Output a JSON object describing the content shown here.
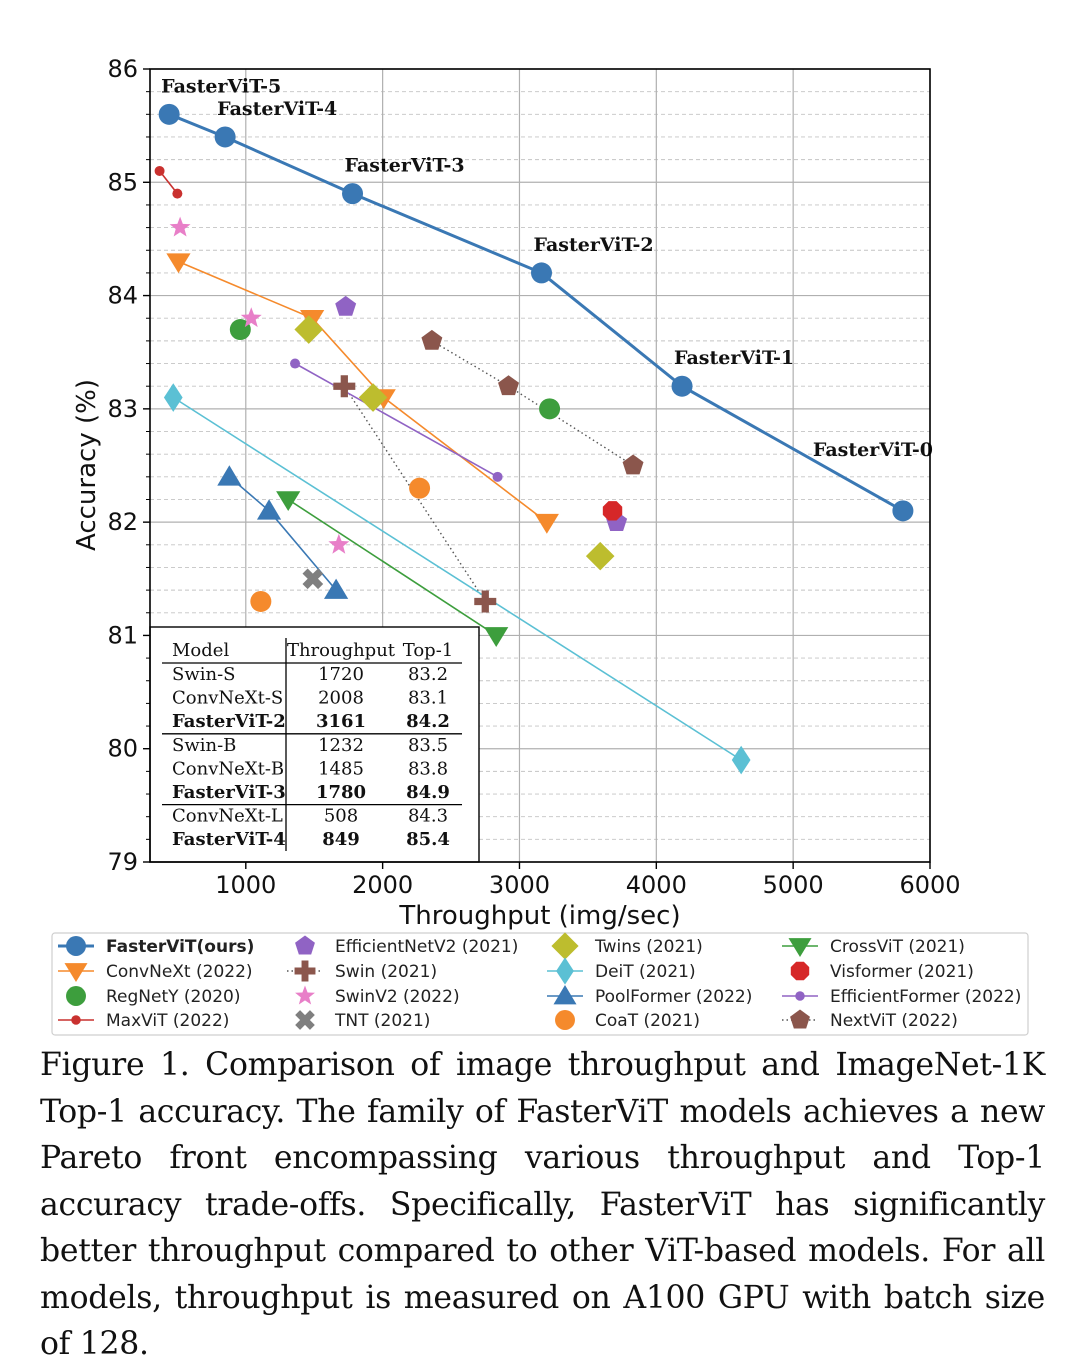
{
  "caption": "Figure 1. Comparison of image throughput and ImageNet-1K Top-1 accuracy. The family of FasterViT models achieves a new Pareto front encompassing various throughput and Top-1 accuracy trade-offs. Specifically, FasterViT has significantly better throughput compared to other ViT-based models. For all models, throughput is measured on A100 GPU with batch size of 128.",
  "chart_data": {
    "type": "scatter",
    "title": "",
    "xlabel": "Throughput (img/sec)",
    "ylabel": "Accuracy (%)",
    "xlim": [
      300,
      6000
    ],
    "ylim": [
      79,
      86
    ],
    "xticks": [
      1000,
      2000,
      3000,
      4000,
      5000,
      6000
    ],
    "yticks": [
      79,
      80,
      81,
      82,
      83,
      84,
      85,
      86
    ],
    "grid": true,
    "legend_position": "below",
    "series": [
      {
        "name": "FasterViT(ours)",
        "color": "#3a78b4",
        "marker": "circle",
        "line": "solid",
        "points": [
          [
            440,
            85.6,
            "FasterViT-5"
          ],
          [
            849,
            85.4,
            "FasterViT-4"
          ],
          [
            1780,
            84.9,
            "FasterViT-3"
          ],
          [
            3161,
            84.2,
            "FasterViT-2"
          ],
          [
            4188,
            83.2,
            "FasterViT-1"
          ],
          [
            5802,
            82.1,
            "FasterViT-0"
          ]
        ]
      },
      {
        "name": "ConvNeXt (2022)",
        "color": "#f58a2c",
        "marker": "triangle-down",
        "line": "solid",
        "points": [
          [
            508,
            84.3
          ],
          [
            1485,
            83.8
          ],
          [
            2008,
            83.1
          ],
          [
            3200,
            82.0
          ]
        ]
      },
      {
        "name": "RegNetY (2020)",
        "color": "#3d9e3d",
        "marker": "circle",
        "line": "none",
        "points": [
          [
            960,
            83.7
          ],
          [
            3220,
            83.0
          ]
        ]
      },
      {
        "name": "MaxViT (2022)",
        "color": "#c9312f",
        "marker": "small-circle",
        "line": "solid",
        "points": [
          [
            370,
            85.1
          ],
          [
            500,
            84.9
          ]
        ]
      },
      {
        "name": "EfficientNetV2 (2021)",
        "color": "#9063c4",
        "marker": "pentagon",
        "line": "none",
        "points": [
          [
            1730,
            83.9
          ],
          [
            3710,
            82.0
          ]
        ]
      },
      {
        "name": "Swin (2021)",
        "color": "#8b564c",
        "marker": "plus",
        "line": "dotted",
        "points": [
          [
            1720,
            83.2
          ],
          [
            2750,
            81.3
          ]
        ]
      },
      {
        "name": "SwinV2 (2022)",
        "color": "#e87fc8",
        "marker": "star",
        "line": "none",
        "points": [
          [
            520,
            84.6
          ],
          [
            1040,
            83.8
          ],
          [
            1680,
            81.8
          ]
        ]
      },
      {
        "name": "TNT (2021)",
        "color": "#7f7f7f",
        "marker": "x",
        "line": "none",
        "points": [
          [
            1490,
            81.5
          ]
        ]
      },
      {
        "name": "Twins (2021)",
        "color": "#bdbd2e",
        "marker": "diamond",
        "line": "none",
        "points": [
          [
            1460,
            83.7
          ],
          [
            1930,
            83.1
          ],
          [
            3590,
            81.7
          ]
        ]
      },
      {
        "name": "DeiT (2021)",
        "color": "#5bc0d4",
        "marker": "thin-diamond",
        "line": "solid",
        "points": [
          [
            470,
            83.1
          ],
          [
            4620,
            79.9
          ]
        ]
      },
      {
        "name": "PoolFormer (2022)",
        "color": "#3a78b4",
        "marker": "triangle-up",
        "line": "solid",
        "points": [
          [
            880,
            82.4
          ],
          [
            1170,
            82.1
          ],
          [
            1660,
            81.4
          ]
        ]
      },
      {
        "name": "CoaT (2021)",
        "color": "#f58a2c",
        "marker": "circle",
        "line": "none",
        "points": [
          [
            1110,
            81.3
          ],
          [
            2270,
            82.3
          ]
        ]
      },
      {
        "name": "CrossViT (2021)",
        "color": "#3d9e3d",
        "marker": "triangle-down",
        "line": "solid",
        "points": [
          [
            1310,
            82.2
          ],
          [
            2830,
            81.0
          ]
        ]
      },
      {
        "name": "Visformer (2021)",
        "color": "#d62728",
        "marker": "octagon",
        "line": "none",
        "points": [
          [
            3680,
            82.1
          ]
        ]
      },
      {
        "name": "EfficientFormer (2022)",
        "color": "#9063c4",
        "marker": "small-circle",
        "line": "solid",
        "points": [
          [
            1360,
            83.4
          ],
          [
            2840,
            82.4
          ]
        ]
      },
      {
        "name": "NextViT (2022)",
        "color": "#8b564c",
        "marker": "pentagon",
        "line": "dotted",
        "points": [
          [
            2360,
            83.6
          ],
          [
            2920,
            83.2
          ],
          [
            3830,
            82.5
          ]
        ]
      }
    ],
    "table": {
      "headers": [
        "Model",
        "Throughput",
        "Top-1"
      ],
      "groups": [
        [
          [
            "Swin-S",
            "1720",
            "83.2",
            false
          ],
          [
            "ConvNeXt-S",
            "2008",
            "83.1",
            false
          ],
          [
            "FasterViT-2",
            "3161",
            "84.2",
            true
          ]
        ],
        [
          [
            "Swin-B",
            "1232",
            "83.5",
            false
          ],
          [
            "ConvNeXt-B",
            "1485",
            "83.8",
            false
          ],
          [
            "FasterViT-3",
            "1780",
            "84.9",
            true
          ]
        ],
        [
          [
            "ConvNeXt-L",
            "508",
            "84.3",
            false
          ],
          [
            "FasterViT-4",
            "849",
            "85.4",
            true
          ]
        ]
      ]
    }
  }
}
